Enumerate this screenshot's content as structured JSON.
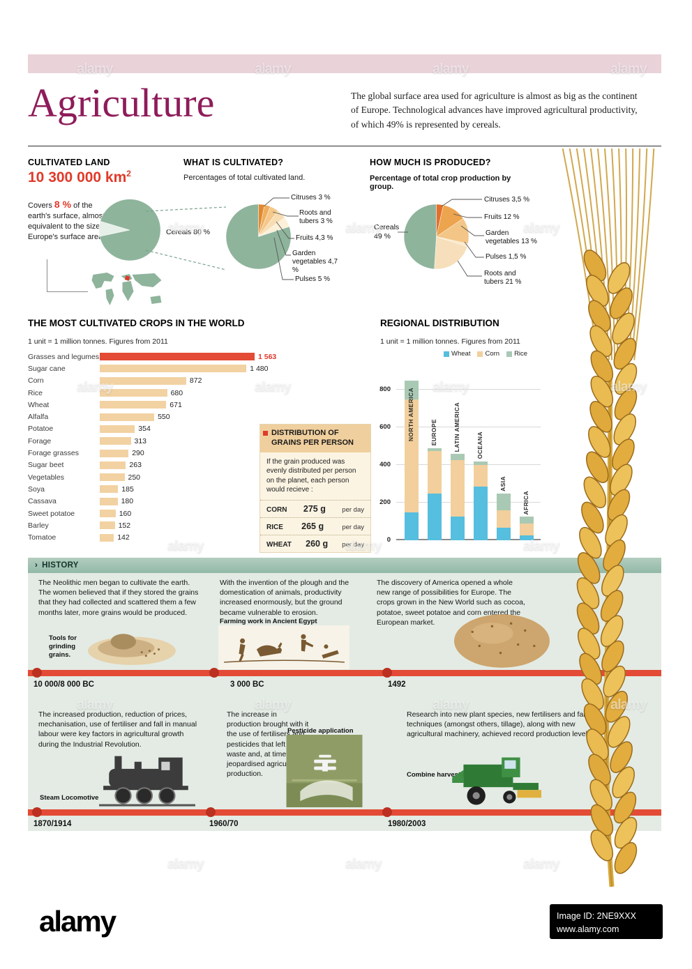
{
  "header": {
    "title": "Agriculture",
    "intro": "The global surface area used for agriculture is almost as big as the continent of Europe. Technological advances have improved agricultural productivity, of which 49% is represented by cereals."
  },
  "cultivated_land": {
    "heading": "CULTIVATED LAND",
    "area_value": "10 300 000 km",
    "area_exponent": "2",
    "covers_word": "Covers",
    "covers_pct": "8 %",
    "covers_text": "of the earth's surface, almost equivalent to the size of Europe's surface area."
  },
  "what_is_cultivated": {
    "heading": "WHAT IS CULTIVATED?",
    "subtitle": "Percentages of total cultivated land."
  },
  "how_much": {
    "heading": "HOW MUCH IS PRODUCED?",
    "subtitle": "Percentage of total crop production by group."
  },
  "grains_box": {
    "title": "DISTRIBUTION OF GRAINS PER PERSON",
    "body": "If the grain produced was evenly distributed per person on the planet, each person would recieve :",
    "rows": [
      {
        "name": "CORN",
        "amount": "275 g",
        "per": "per day"
      },
      {
        "name": "RICE",
        "amount": "265 g",
        "per": "per day"
      },
      {
        "name": "WHEAT",
        "amount": "260 g",
        "per": "per day"
      }
    ]
  },
  "history": {
    "chevron": "›",
    "heading": "HISTORY",
    "panels": [
      {
        "text": "The Neolithic men began to cultivate the earth. The women believed that if they stored the grains that they had collected and scattered them a few months later, more grains would be produced.",
        "caption": "Tools for grinding grains.",
        "date": "10 000/8 000 BC"
      },
      {
        "text": "With the invention of the plough and the domestication of animals, productivity increased enormously, but the ground became vulnerable to erosion.",
        "caption": "Farming work in Ancient Egypt",
        "date": "3 000 BC"
      },
      {
        "text": "The discovery of America opened a whole new range of possibilities for Europe. The crops grown in the New World such as cocoa, potatoe, sweet potatoe and corn entered the European market.",
        "caption": "",
        "date": "1492"
      },
      {
        "text": "The increased production, reduction of prices, mechanisation, use of fertiliser and fall in manual labour were key factors in agricultural growth during the Industrial Revolution.",
        "caption": "Steam Locomotive",
        "date": "1870/1914"
      },
      {
        "text": "The increase in production brought with it the use of fertilisers and pesticides that left toxic waste and, at times, jeopardised agricultural production.",
        "caption": "Pesticide application",
        "date": "1960/70"
      },
      {
        "text": "Research into new plant species, new fertilisers and farming techniques (amongst others, tillage), along with new agricultural machinery, achieved record production levels.",
        "caption": "Combine harvester",
        "date": "1980/2003"
      }
    ]
  },
  "footer": {
    "logo": "alamy",
    "image_id": "Image ID: 2NE9XXX",
    "url": "www.alamy.com"
  },
  "chart_data": [
    {
      "id": "earth",
      "type": "pie",
      "title": "CULTIVATED LAND",
      "start_angle": 168,
      "slices": [
        {
          "label": "Cultivated land",
          "display": "8 %",
          "value": 8,
          "color": "#e6f0e8"
        },
        {
          "label": "Rest of the earth's surface",
          "display": "",
          "value": 92,
          "color": "#8fb49c"
        }
      ]
    },
    {
      "id": "cultivated",
      "type": "pie",
      "title": "WHAT IS CULTIVATED?",
      "subtitle": "Percentages of total cultivated land.",
      "start_angle": -90,
      "slices": [
        {
          "label": "Citruses",
          "display": "Citruses 3 %",
          "value": 3,
          "color": "#e2892f"
        },
        {
          "label": "Roots and tubers",
          "display": "Roots and tubers 3 %",
          "value": 3,
          "color": "#efae5c"
        },
        {
          "label": "Fruits",
          "display": "Fruits 4,3 %",
          "value": 4.3,
          "color": "#f4c88b"
        },
        {
          "label": "Garden vegetables",
          "display": "Garden vegetables 4,7 %",
          "value": 4.7,
          "color": "#f8ddb2"
        },
        {
          "label": "Pulses",
          "display": "Pulses 5 %",
          "value": 5,
          "color": "#fcf0d8"
        },
        {
          "label": "Cereals",
          "display": "Cereals  80 %",
          "value": 80,
          "color": "#8fb49c"
        }
      ]
    },
    {
      "id": "produced",
      "type": "pie",
      "title": "HOW MUCH IS PRODUCED?",
      "subtitle": "Percentage of total crop production by group.",
      "start_angle": -90,
      "slices": [
        {
          "label": "Citruses",
          "display": "Citruses 3,5 %",
          "value": 3.5,
          "color": "#e2702d"
        },
        {
          "label": "Fruits",
          "display": "Fruits 12 %",
          "value": 12,
          "color": "#eda44e"
        },
        {
          "label": "Garden vegetables",
          "display": "Garden vegetables 13 %",
          "value": 13,
          "color": "#f3c687"
        },
        {
          "label": "Pulses",
          "display": "Pulses 1,5 %",
          "value": 1.5,
          "color": "#f9e7c8"
        },
        {
          "label": "Roots and tubers",
          "display": "Roots and tubers 21 %",
          "value": 21,
          "color": "#f6dfba"
        },
        {
          "label": "Cereals",
          "display": "Cereals 49 %",
          "value": 49,
          "color": "#8fb49c"
        }
      ]
    },
    {
      "id": "crops",
      "type": "bar",
      "title": "THE MOST CULTIVATED CROPS IN THE WORLD",
      "note": "1 unit = 1 million tonnes. Figures from 2011",
      "xlim": [
        0,
        1563
      ],
      "rows": [
        {
          "label": "Grasses and legumes",
          "value": 1563,
          "display": "1 563",
          "highlight": true
        },
        {
          "label": "Sugar cane",
          "value": 1480,
          "display": "1 480",
          "highlight": false
        },
        {
          "label": "Corn",
          "value": 872,
          "display": "872",
          "highlight": false
        },
        {
          "label": "Rice",
          "value": 680,
          "display": "680",
          "highlight": false
        },
        {
          "label": "Wheat",
          "value": 671,
          "display": "671",
          "highlight": false
        },
        {
          "label": "Alfalfa",
          "value": 550,
          "display": "550",
          "highlight": false
        },
        {
          "label": "Potatoe",
          "value": 354,
          "display": "354",
          "highlight": false
        },
        {
          "label": "Forage",
          "value": 313,
          "display": "313",
          "highlight": false
        },
        {
          "label": "Forage grasses",
          "value": 290,
          "display": "290",
          "highlight": false
        },
        {
          "label": "Sugar beet",
          "value": 263,
          "display": "263",
          "highlight": false
        },
        {
          "label": "Vegetables",
          "value": 250,
          "display": "250",
          "highlight": false
        },
        {
          "label": "Soya",
          "value": 185,
          "display": "185",
          "highlight": false
        },
        {
          "label": "Cassava",
          "value": 180,
          "display": "180",
          "highlight": false
        },
        {
          "label": "Sweet potatoe",
          "value": 160,
          "display": "160",
          "highlight": false
        },
        {
          "label": "Barley",
          "value": 152,
          "display": "152",
          "highlight": false
        },
        {
          "label": "Tomatoe",
          "value": 142,
          "display": "142",
          "highlight": false
        }
      ]
    },
    {
      "id": "regional",
      "type": "stacked-bar",
      "title": "REGIONAL DISTRIBUTION",
      "note": "1 unit = 1 million tonnes. Figures from 2011",
      "categories": [
        "NORTH AMERICA",
        "EUROPE",
        "LATIN AMERICA",
        "OCEANA",
        "ASIA",
        "AFRICA"
      ],
      "series": [
        {
          "name": "Wheat",
          "color": "#56bede",
          "values": [
            150,
            250,
            125,
            285,
            65,
            25
          ]
        },
        {
          "name": "Corn",
          "color": "#f2cf9c",
          "values": [
            600,
            225,
            300,
            115,
            95,
            65
          ]
        },
        {
          "name": "Rice",
          "color": "#a9c9b4",
          "values": [
            100,
            15,
            35,
            20,
            90,
            35
          ]
        }
      ],
      "ylim": [
        0,
        880
      ],
      "ticks": [
        0,
        200,
        400,
        600,
        800
      ]
    }
  ]
}
